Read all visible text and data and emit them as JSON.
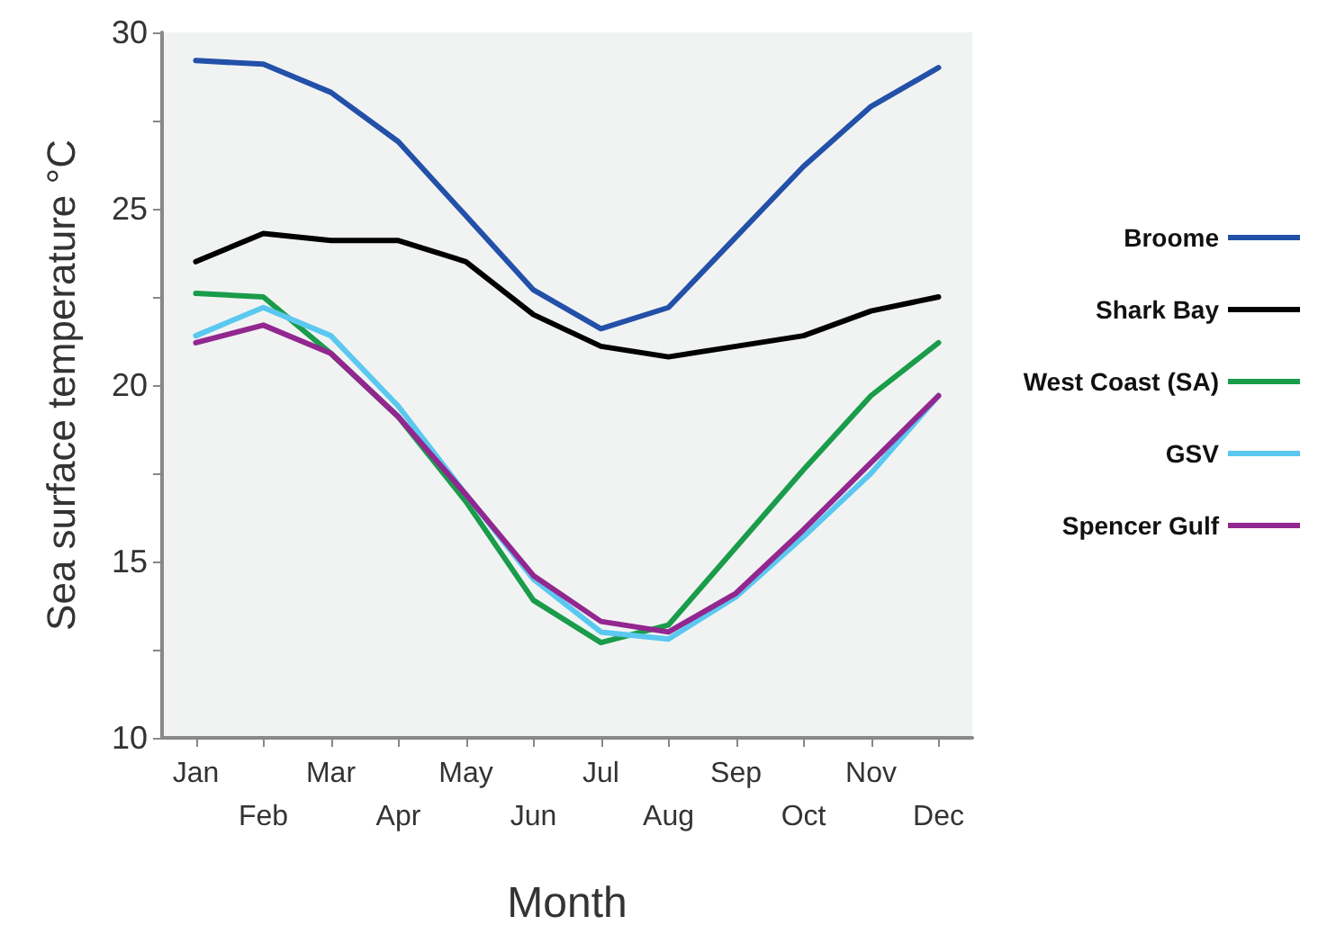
{
  "chart_data": {
    "type": "line",
    "xlabel": "Month",
    "ylabel": "Sea surface temperature °C",
    "categories": [
      "Jan",
      "Feb",
      "Mar",
      "Apr",
      "May",
      "Jun",
      "Jul",
      "Aug",
      "Sep",
      "Oct",
      "Nov",
      "Dec"
    ],
    "ylim": [
      10,
      30
    ],
    "yticks": [
      10,
      {
        "value": 12.5,
        "label": null
      },
      15,
      {
        "value": 17.5,
        "label": null
      },
      20,
      {
        "value": 22.5,
        "label": null
      },
      25,
      {
        "value": 27.5,
        "label": null
      },
      30
    ],
    "grid": false,
    "legend": "right",
    "marker": "none",
    "line_style": "solid",
    "series": [
      {
        "name": "Broome",
        "color": "#2350a8",
        "values": [
          29.2,
          29.1,
          28.3,
          26.9,
          24.8,
          22.7,
          21.6,
          22.2,
          24.2,
          26.2,
          27.9,
          29.0
        ]
      },
      {
        "name": "Shark Bay",
        "color": "#000000",
        "values": [
          23.5,
          24.3,
          24.1,
          24.1,
          23.5,
          22.0,
          21.1,
          20.8,
          21.1,
          21.4,
          22.1,
          22.5
        ]
      },
      {
        "name": "West Coast (SA)",
        "color": "#1a9c4a",
        "values": [
          22.6,
          22.5,
          20.9,
          19.1,
          16.7,
          13.9,
          12.7,
          13.2,
          15.4,
          17.6,
          19.7,
          21.2
        ]
      },
      {
        "name": "GSV",
        "color": "#5bc8f0",
        "values": [
          21.4,
          22.2,
          21.4,
          19.4,
          16.9,
          14.5,
          13.0,
          12.8,
          14.0,
          15.7,
          17.5,
          19.7
        ]
      },
      {
        "name": "Spencer Gulf",
        "color": "#92278f",
        "values": [
          21.2,
          21.7,
          20.9,
          19.1,
          16.9,
          14.6,
          13.3,
          13.0,
          14.1,
          15.9,
          17.8,
          19.7
        ]
      }
    ]
  }
}
